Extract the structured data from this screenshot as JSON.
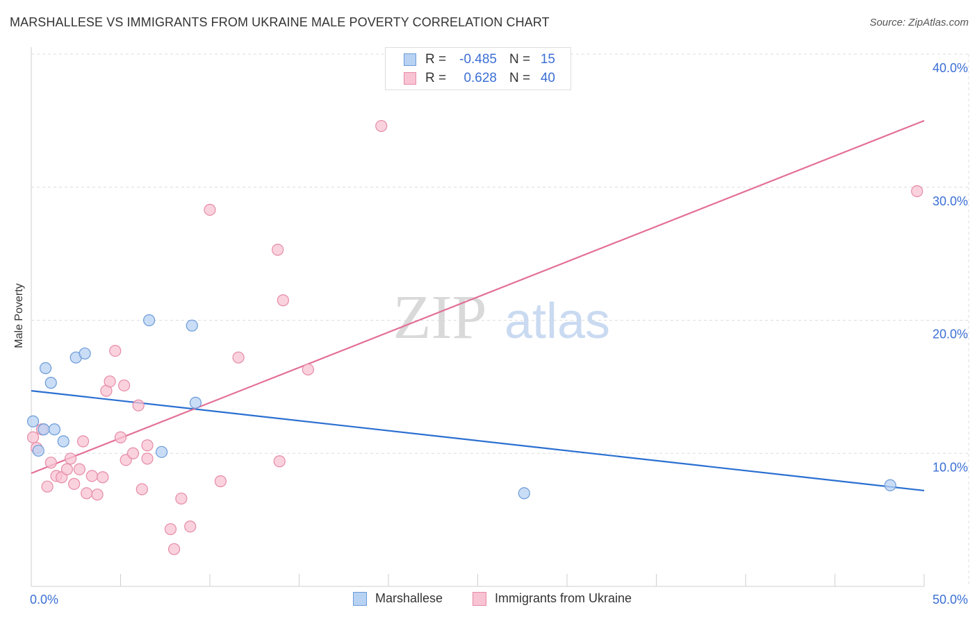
{
  "header": {
    "title": "MARSHALLESE VS IMMIGRANTS FROM UKRAINE MALE POVERTY CORRELATION CHART",
    "source": "Source: ZipAtlas.com"
  },
  "watermark": {
    "zip": "ZIP",
    "atlas": "atlas"
  },
  "legend_top": {
    "rows": [
      {
        "r_label": "R =",
        "r_value": "-0.485",
        "n_label": "N =",
        "n_value": "15"
      },
      {
        "r_label": "R =",
        "r_value": "0.628",
        "n_label": "N =",
        "n_value": "40"
      }
    ]
  },
  "legend_bottom": {
    "items": [
      "Marshallese",
      "Immigrants from Ukraine"
    ]
  },
  "colors": {
    "blue_fill": "#b8d2f3",
    "blue_stroke": "#6a9ad8",
    "blue_line": "#2a6fd1",
    "pink_fill": "#f8c3d3",
    "pink_stroke": "#e68aa6",
    "pink_line": "#e36f96",
    "tick_label": "#3b6fd4",
    "grid": "#dcdcdc"
  },
  "chart_data": {
    "type": "scatter",
    "title": "MARSHALLESE VS IMMIGRANTS FROM UKRAINE MALE POVERTY CORRELATION CHART",
    "xlabel": "",
    "ylabel": "Male Poverty",
    "xlim": [
      0,
      50
    ],
    "ylim": [
      0,
      40
    ],
    "x_tick_labels": [
      "0.0%",
      "50.0%"
    ],
    "y_ticks": [
      10,
      20,
      30,
      40
    ],
    "y_tick_labels": [
      "10.0%",
      "20.0%",
      "30.0%",
      "40.0%"
    ],
    "grid": true,
    "series": [
      {
        "name": "Marshallese",
        "r": -0.485,
        "n": 15,
        "points": [
          [
            0.1,
            12.4
          ],
          [
            0.4,
            10.2
          ],
          [
            0.7,
            11.8
          ],
          [
            0.8,
            16.4
          ],
          [
            1.1,
            15.3
          ],
          [
            1.3,
            11.8
          ],
          [
            1.8,
            10.9
          ],
          [
            2.5,
            17.2
          ],
          [
            3.0,
            17.5
          ],
          [
            6.6,
            20.0
          ],
          [
            9.0,
            19.6
          ],
          [
            9.2,
            13.8
          ],
          [
            7.3,
            10.1
          ],
          [
            27.6,
            7.0
          ],
          [
            48.1,
            7.6
          ]
        ],
        "trend": {
          "x": [
            0,
            50
          ],
          "y": [
            14.7,
            7.2
          ]
        }
      },
      {
        "name": "Immigrants from Ukraine",
        "r": 0.628,
        "n": 40,
        "points": [
          [
            0.1,
            11.2
          ],
          [
            0.3,
            10.4
          ],
          [
            0.6,
            11.8
          ],
          [
            0.9,
            7.5
          ],
          [
            1.1,
            9.3
          ],
          [
            1.4,
            8.3
          ],
          [
            1.7,
            8.2
          ],
          [
            2.0,
            8.8
          ],
          [
            2.2,
            9.6
          ],
          [
            2.4,
            7.7
          ],
          [
            2.7,
            8.8
          ],
          [
            2.9,
            10.9
          ],
          [
            3.1,
            7.0
          ],
          [
            3.4,
            8.3
          ],
          [
            3.7,
            6.9
          ],
          [
            4.0,
            8.2
          ],
          [
            4.2,
            14.7
          ],
          [
            4.4,
            15.4
          ],
          [
            4.7,
            17.7
          ],
          [
            5.0,
            11.2
          ],
          [
            5.2,
            15.1
          ],
          [
            5.3,
            9.5
          ],
          [
            5.7,
            10.0
          ],
          [
            6.0,
            13.6
          ],
          [
            6.2,
            7.3
          ],
          [
            6.5,
            9.6
          ],
          [
            6.5,
            10.6
          ],
          [
            7.8,
            4.3
          ],
          [
            8.0,
            2.8
          ],
          [
            8.4,
            6.6
          ],
          [
            8.9,
            4.5
          ],
          [
            10.0,
            28.3
          ],
          [
            10.6,
            7.9
          ],
          [
            11.6,
            17.2
          ],
          [
            13.8,
            25.3
          ],
          [
            13.9,
            9.4
          ],
          [
            14.1,
            21.5
          ],
          [
            15.5,
            16.3
          ],
          [
            19.6,
            34.6
          ],
          [
            49.6,
            29.7
          ]
        ],
        "trend": {
          "x": [
            0,
            50
          ],
          "y": [
            8.5,
            35.0
          ]
        }
      }
    ]
  }
}
